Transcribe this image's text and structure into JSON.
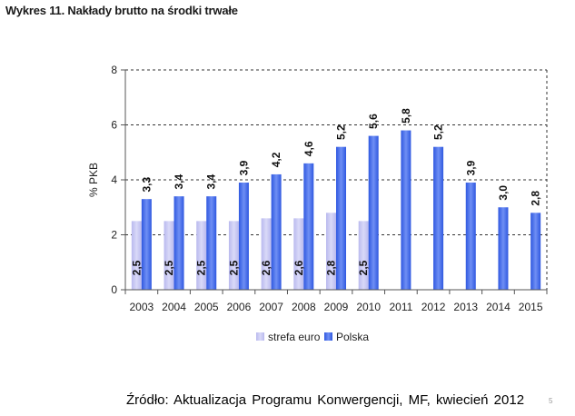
{
  "title": "Wykres 11. Nakłady brutto na środki trwałe",
  "source": "Źródło: Aktualizacja Programu Konwergencji, MF, kwiecień 2012",
  "page_number": "5",
  "chart_data": {
    "type": "bar",
    "title": "",
    "xlabel": "",
    "ylabel": "% PKB",
    "ylim": [
      0,
      8
    ],
    "yticks": [
      0,
      2,
      4,
      6,
      8
    ],
    "grid": true,
    "legend_position": "bottom",
    "categories": [
      "2003",
      "2004",
      "2005",
      "2006",
      "2007",
      "2008",
      "2009",
      "2010",
      "2011",
      "2012",
      "2013",
      "2014",
      "2015"
    ],
    "series": [
      {
        "name": "strefa euro",
        "color": "#c8c8f2",
        "values": [
          2.5,
          2.5,
          2.5,
          2.5,
          2.6,
          2.6,
          2.8,
          2.5,
          null,
          null,
          null,
          null,
          null
        ],
        "labels": [
          "2,5",
          "2,5",
          "2,5",
          "2,5",
          "2,6",
          "2,6",
          "2,8",
          "2,5",
          null,
          null,
          null,
          null,
          null
        ]
      },
      {
        "name": "Polska",
        "color": "#4a72ec",
        "values": [
          3.3,
          3.4,
          3.4,
          3.9,
          4.2,
          4.6,
          5.2,
          5.6,
          5.8,
          5.2,
          3.9,
          3.0,
          2.8
        ],
        "labels": [
          "3,3",
          "3,4",
          "3,4",
          "3,9",
          "4,2",
          "4,6",
          "5,2",
          "5,6",
          "5,8",
          "5,2",
          "3,9",
          "3,0",
          "2,8"
        ]
      }
    ]
  }
}
